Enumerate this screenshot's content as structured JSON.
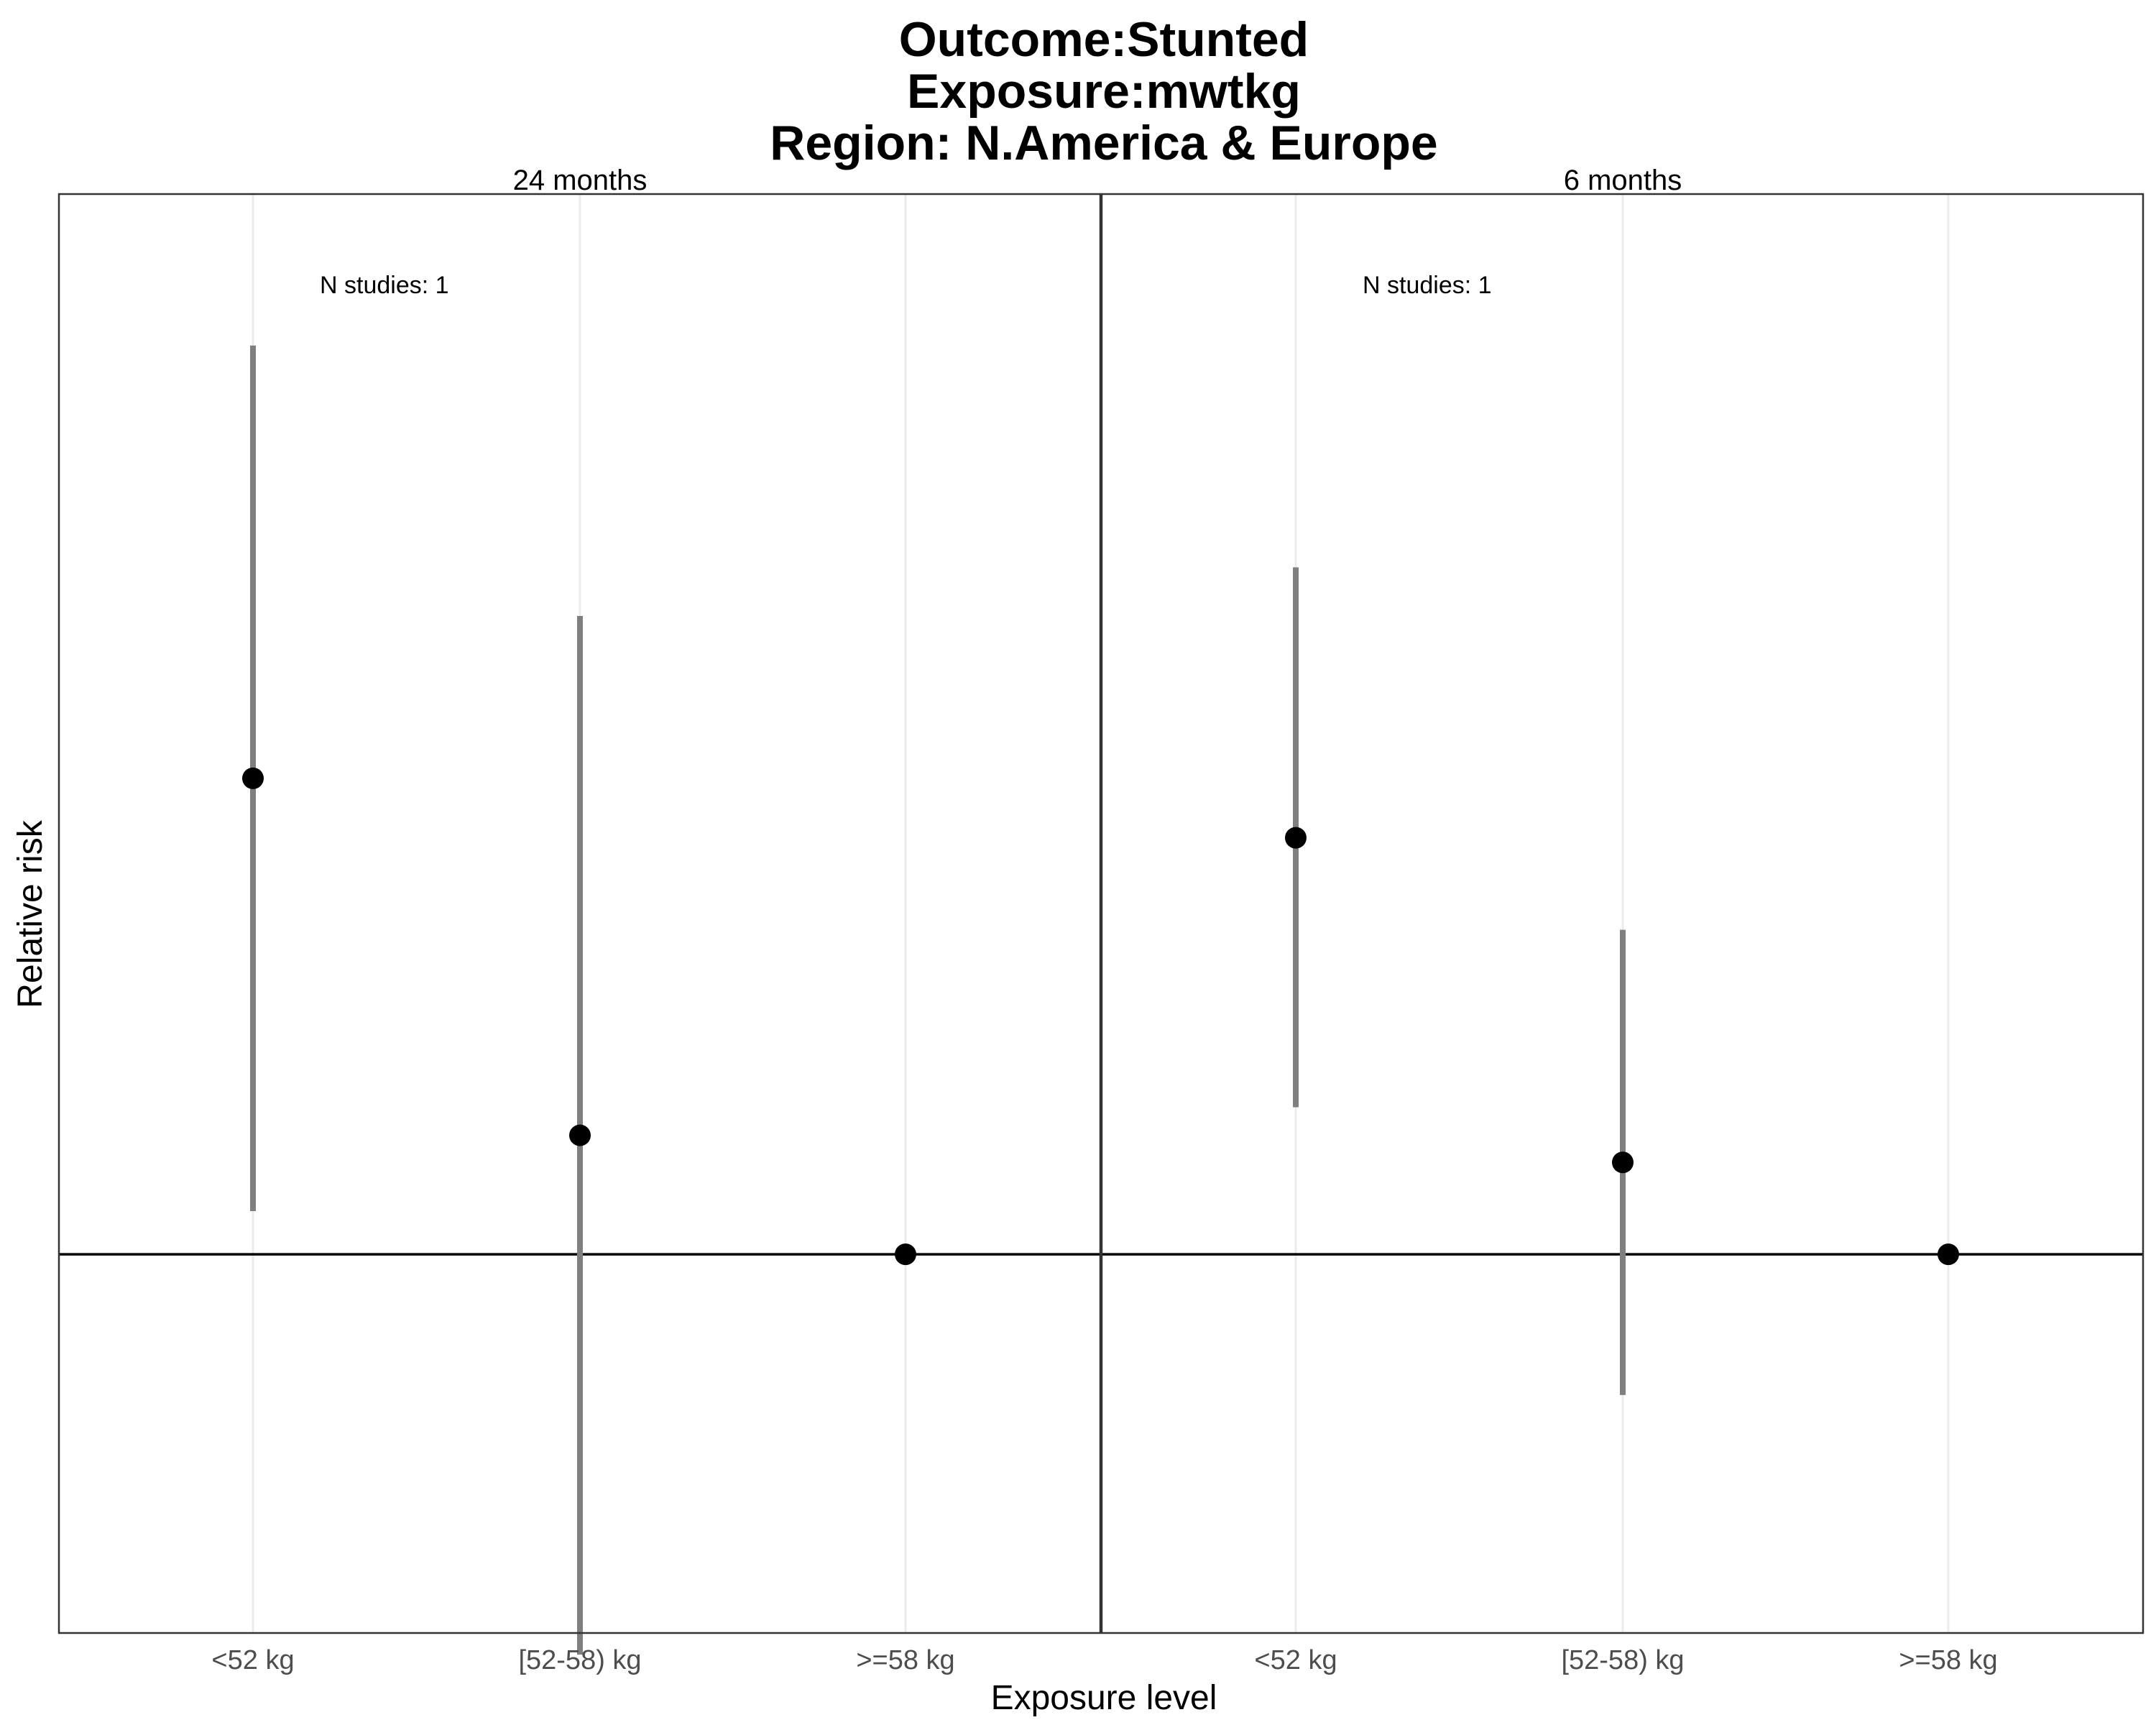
{
  "chart_data": {
    "type": "scatter",
    "title_lines": [
      "Outcome:Stunted",
      "Exposure:mwtkg",
      "Region: N.America & Europe"
    ],
    "xlabel": "Exposure level",
    "ylabel": "Relative risk",
    "categories": [
      "<52 kg",
      "[52-58) kg",
      ">=58 kg"
    ],
    "reference_line": 1,
    "y_ticks_shown": false,
    "grid": "vertical major lines only",
    "ylim": [
      0.65,
      1.98
    ],
    "panels": [
      {
        "strip_label": "24 months",
        "annotation": "N studies: 1",
        "points": [
          {
            "category": "<52 kg",
            "estimate": 1.44,
            "ci_lower": 1.04,
            "ci_upper": 1.84
          },
          {
            "category": "[52-58) kg",
            "estimate": 1.11,
            "ci_lower": 0.63,
            "ci_upper": 1.59
          },
          {
            "category": ">=58 kg",
            "estimate": 1.0,
            "ci_lower": 1.0,
            "ci_upper": 1.0
          }
        ]
      },
      {
        "strip_label": "6 months",
        "annotation": "N studies: 1",
        "points": [
          {
            "category": "<52 kg",
            "estimate": 1.385,
            "ci_lower": 1.136,
            "ci_upper": 1.635
          },
          {
            "category": "[52-58) kg",
            "estimate": 1.085,
            "ci_lower": 0.87,
            "ci_upper": 1.3
          },
          {
            "category": ">=58 kg",
            "estimate": 1.0,
            "ci_lower": 1.0,
            "ci_upper": 1.0
          }
        ]
      }
    ],
    "colors": {
      "point": "#000000",
      "ci": "#7f7f7f",
      "reference": "#000000",
      "grid": "#ebebeb",
      "border": "#333333"
    }
  }
}
